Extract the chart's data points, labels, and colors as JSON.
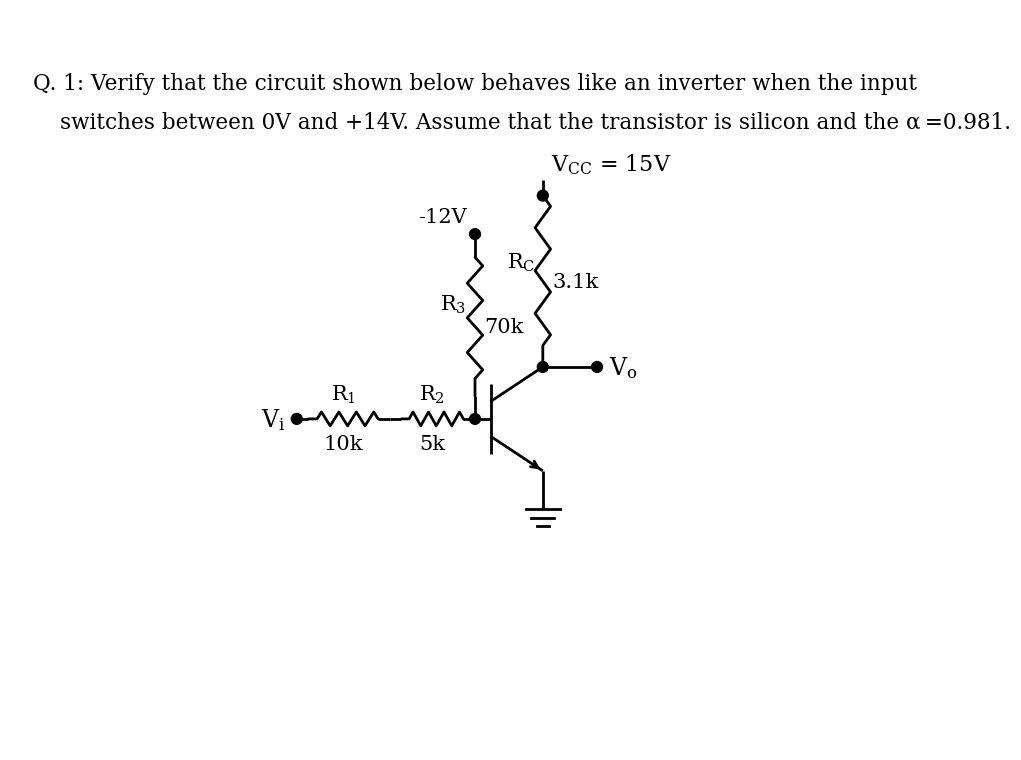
{
  "title_line1": "Q. 1: Verify that the circuit shown below behaves like an inverter when the input",
  "title_line2": "switches between 0V and +14V. Assume that the transistor is silicon and the α =0.981.",
  "neg12_label": "-12V",
  "vcc_text": "V CC = 15V",
  "rc_text": "Rc",
  "rc_val": "3.1k",
  "r3_text": "R₃",
  "r3_val": "70k",
  "r1_text": "R₁",
  "r1_val": "10k",
  "r2_text": "R₂",
  "r2_val": "5k",
  "vi_text": "Vi",
  "vo_text": "Vo",
  "bg_color": "#ffffff",
  "line_color": "#000000",
  "font_size_title": 15.5,
  "font_size_circuit": 15
}
